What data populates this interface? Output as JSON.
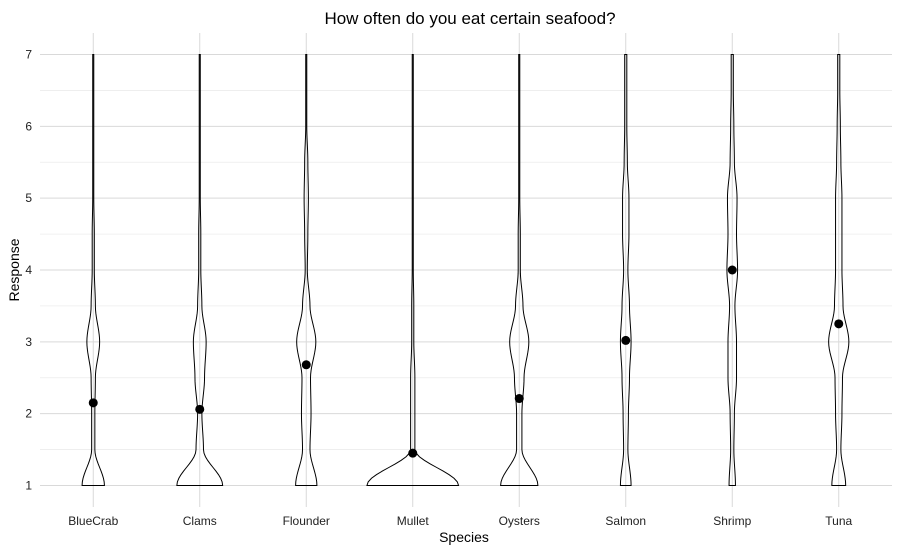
{
  "chart_data": {
    "type": "violin",
    "title": "How often do you eat certain seafood?",
    "xlabel": "Species",
    "ylabel": "Response",
    "categories": [
      "BlueCrab",
      "Clams",
      "Flounder",
      "Mullet",
      "Oysters",
      "Salmon",
      "Shrimp",
      "Tuna"
    ],
    "y_ticks": [
      "1",
      "2",
      "3",
      "4",
      "5",
      "6",
      "7"
    ],
    "ylim": [
      0.7,
      7.3
    ],
    "grid": true,
    "legend": "none",
    "mean_points": [
      2.15,
      2.06,
      2.68,
      1.45,
      2.21,
      3.02,
      4.0,
      3.25
    ],
    "density_levels": [
      1,
      1.5,
      2,
      2.5,
      3,
      3.5,
      4,
      4.5,
      5,
      5.5,
      6,
      6.5,
      7
    ],
    "density_half_widths": [
      [
        0.21,
        0.03,
        0.03,
        0.04,
        0.12,
        0.04,
        0.02,
        0.02,
        0.01,
        0.01,
        0.01,
        0.01,
        0.01
      ],
      [
        0.43,
        0.07,
        0.04,
        0.09,
        0.12,
        0.04,
        0.02,
        0.02,
        0.01,
        0.01,
        0.01,
        0.01,
        0.01
      ],
      [
        0.2,
        0.07,
        0.09,
        0.08,
        0.18,
        0.07,
        0.02,
        0.03,
        0.04,
        0.03,
        0.01,
        0.01,
        0.01
      ],
      [
        0.86,
        0.04,
        0.04,
        0.04,
        0.02,
        0.02,
        0.01,
        0.01,
        0.01,
        0.01,
        0.01,
        0.01,
        0.01
      ],
      [
        0.35,
        0.05,
        0.05,
        0.09,
        0.18,
        0.07,
        0.02,
        0.02,
        0.01,
        0.01,
        0.01,
        0.01,
        0.01
      ],
      [
        0.1,
        0.04,
        0.05,
        0.07,
        0.1,
        0.07,
        0.04,
        0.06,
        0.06,
        0.03,
        0.02,
        0.02,
        0.02
      ],
      [
        0.06,
        0.03,
        0.04,
        0.08,
        0.08,
        0.05,
        0.1,
        0.08,
        0.09,
        0.04,
        0.03,
        0.02,
        0.02
      ],
      [
        0.13,
        0.04,
        0.06,
        0.07,
        0.19,
        0.08,
        0.06,
        0.06,
        0.06,
        0.04,
        0.03,
        0.02,
        0.02
      ]
    ]
  }
}
